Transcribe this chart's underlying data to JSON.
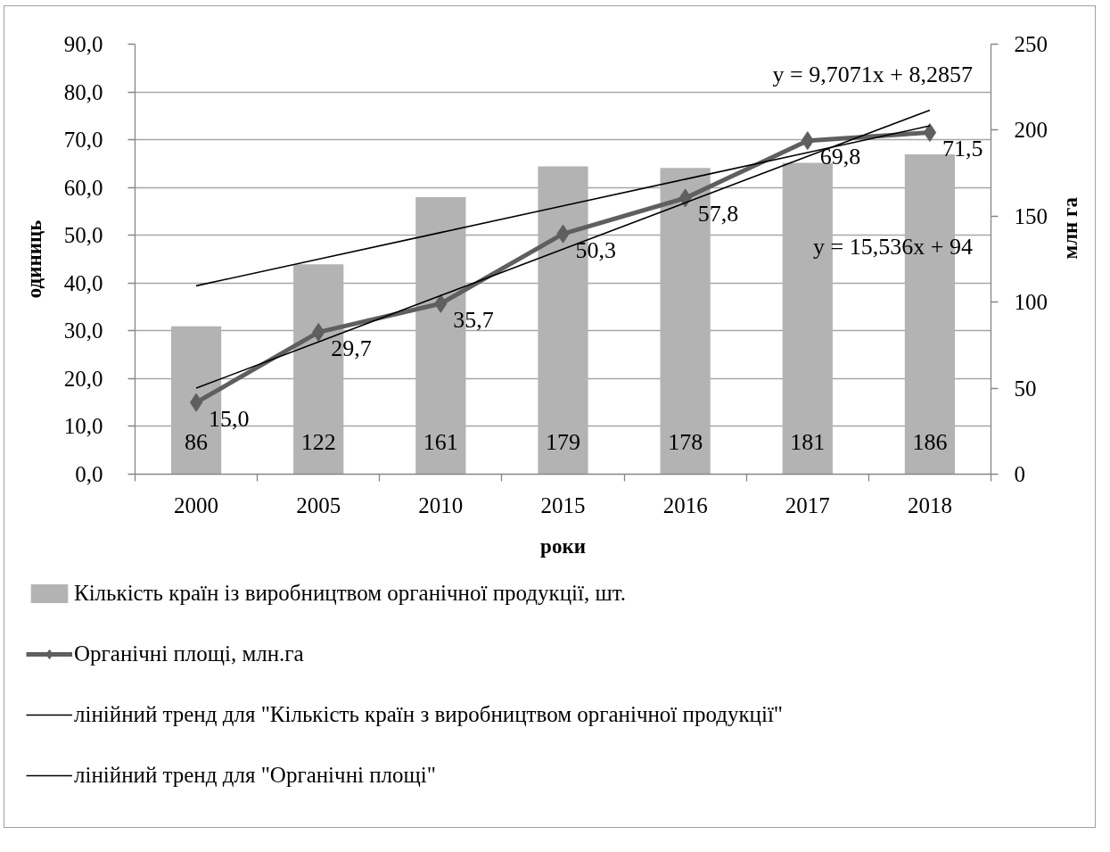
{
  "chart_data": {
    "type": "bar",
    "xlabel": "роки",
    "ylabel": "одиниць",
    "y2label": "млн га",
    "categories": [
      "2000",
      "2005",
      "2010",
      "2015",
      "2016",
      "2017",
      "2018"
    ],
    "series": [
      {
        "name": "Кількість країн із виробництвом органічної продукції, шт.",
        "axis": "y2",
        "color": "#b3b3b3",
        "values": [
          86,
          122,
          161,
          179,
          178,
          181,
          186
        ],
        "value_labels": [
          "86",
          "122",
          "161",
          "179",
          "178",
          "181",
          "186"
        ]
      },
      {
        "name": "Органічні площі, млн.га",
        "type": "line",
        "color": "#5f5f5f",
        "marker": "diamond",
        "values": [
          15.0,
          29.7,
          35.7,
          50.3,
          57.8,
          69.8,
          71.5
        ],
        "value_labels": [
          "15,0",
          "29,7",
          "35,7",
          "50,3",
          "57,8",
          "69,8",
          "71,5"
        ]
      },
      {
        "name": "лінійний тренд для \"Кількість країн з виробництвом органічної продукції\"",
        "type": "line",
        "axis": "y2",
        "color": "#000000",
        "marker": "none",
        "values": [
          109.5,
          125,
          140.5,
          156,
          171.5,
          187,
          202.5
        ]
      },
      {
        "name": "лінійний тренд для \"Органічні площі\"",
        "type": "line",
        "color": "#000000",
        "marker": "none",
        "values": [
          18.0,
          27.7,
          37.4,
          47.1,
          56.8,
          66.5,
          76.2
        ]
      }
    ],
    "ylim": [
      0,
      90
    ],
    "yticks": [
      {
        "value": 0,
        "label": "0,0"
      },
      {
        "value": 10,
        "label": "10,0"
      },
      {
        "value": 20,
        "label": "20,0"
      },
      {
        "value": 30,
        "label": "30,0"
      },
      {
        "value": 40,
        "label": "40,0"
      },
      {
        "value": 50,
        "label": "50,0"
      },
      {
        "value": 60,
        "label": "60,0"
      },
      {
        "value": 70,
        "label": "70,0"
      },
      {
        "value": 80,
        "label": "80,0"
      },
      {
        "value": 90,
        "label": "90,0"
      }
    ],
    "y2lim": [
      0,
      250
    ],
    "y2ticks": [
      0,
      50,
      100,
      150,
      200,
      250
    ],
    "grid": "y",
    "legend": "bottom",
    "annotations": [
      "y = 9,7071x + 8,2857",
      "y = 15,536x + 94"
    ]
  }
}
